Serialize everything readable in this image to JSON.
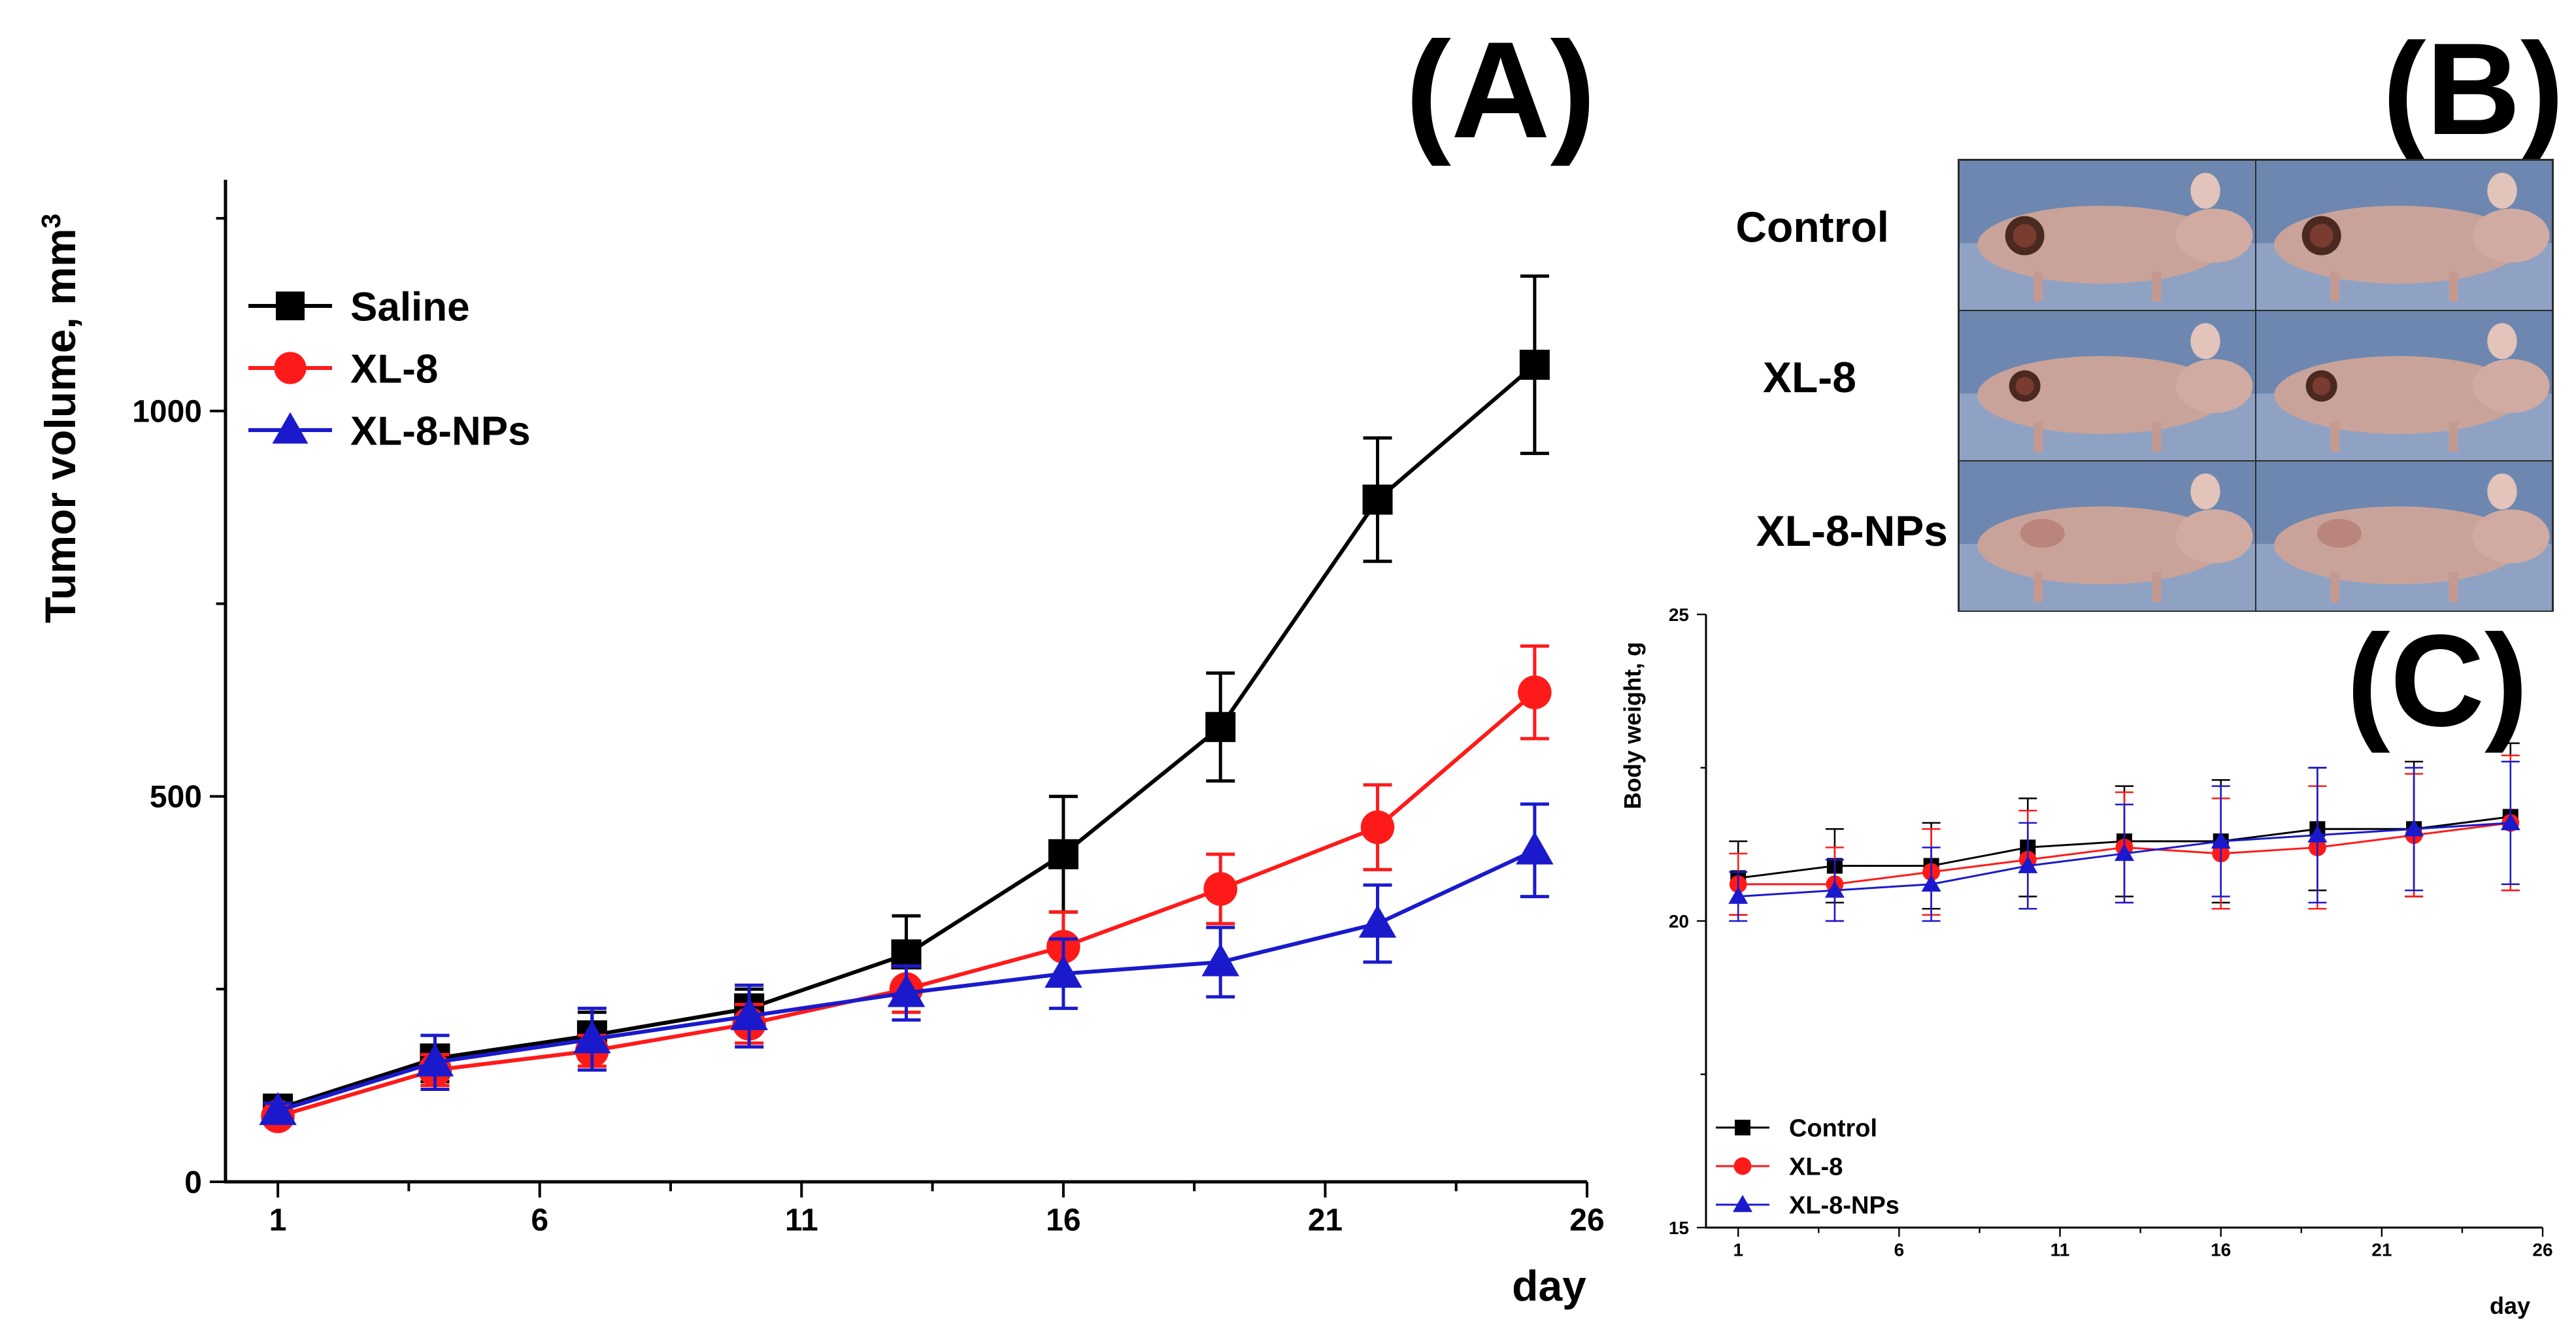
{
  "panels": {
    "a": "(A)",
    "b": "(B)",
    "c": "(C)"
  },
  "colors": {
    "saline": "#000000",
    "xl8": "#ff1a1a",
    "xl8nps": "#1a1acc",
    "photo_bg": "#6d87b0",
    "mouse_skin": "#c9a39a"
  },
  "chart_data": [
    {
      "id": "A",
      "type": "line",
      "title": "(A)",
      "xlabel": "day",
      "ylabel": "Tumor volume, mm",
      "ylabel_sup": "3",
      "xlim": [
        0,
        26
      ],
      "ylim": [
        0,
        1300
      ],
      "xticks": [
        1,
        6,
        11,
        16,
        21,
        26
      ],
      "yticks": [
        0,
        500,
        1000
      ],
      "legend_position": "top-left",
      "series": [
        {
          "name": "Saline",
          "marker": "square",
          "color": "#000000",
          "x": [
            1,
            4,
            7,
            10,
            13,
            16,
            19,
            22,
            25
          ],
          "y": [
            95,
            160,
            190,
            225,
            295,
            425,
            590,
            885,
            1060
          ],
          "err": [
            10,
            30,
            30,
            25,
            50,
            75,
            70,
            80,
            115
          ]
        },
        {
          "name": "XL-8",
          "marker": "circle",
          "color": "#ff1a1a",
          "x": [
            1,
            4,
            7,
            10,
            13,
            16,
            19,
            22,
            25
          ],
          "y": [
            85,
            145,
            170,
            205,
            250,
            305,
            380,
            460,
            635
          ],
          "err": [
            10,
            20,
            20,
            25,
            30,
            45,
            45,
            55,
            60
          ]
        },
        {
          "name": "XL-8-NPs",
          "marker": "triangle",
          "color": "#1a1acc",
          "x": [
            1,
            4,
            7,
            10,
            13,
            16,
            19,
            22,
            25
          ],
          "y": [
            92,
            155,
            185,
            215,
            245,
            270,
            285,
            335,
            430
          ],
          "err": [
            10,
            35,
            40,
            40,
            35,
            45,
            45,
            50,
            60
          ]
        }
      ]
    },
    {
      "id": "C",
      "type": "line",
      "title": "(C)",
      "xlabel": "day",
      "ylabel": "Body weight, g",
      "xlim": [
        0,
        26
      ],
      "ylim": [
        15,
        25
      ],
      "xticks": [
        1,
        6,
        11,
        16,
        21,
        26
      ],
      "yticks": [
        15,
        20,
        25
      ],
      "legend_position": "bottom-left",
      "series": [
        {
          "name": "Control",
          "marker": "square",
          "color": "#000000",
          "x": [
            1,
            4,
            7,
            10,
            13,
            16,
            19,
            22,
            25
          ],
          "y": [
            20.7,
            20.9,
            20.9,
            21.2,
            21.3,
            21.3,
            21.5,
            21.5,
            21.7
          ],
          "err": [
            0.6,
            0.6,
            0.7,
            0.8,
            0.9,
            1.0,
            1.0,
            1.1,
            1.2
          ]
        },
        {
          "name": "XL-8",
          "marker": "circle",
          "color": "#ff1a1a",
          "x": [
            1,
            4,
            7,
            10,
            13,
            16,
            19,
            22,
            25
          ],
          "y": [
            20.6,
            20.6,
            20.8,
            21.0,
            21.2,
            21.1,
            21.2,
            21.4,
            21.6
          ],
          "err": [
            0.5,
            0.6,
            0.7,
            0.8,
            0.9,
            0.9,
            1.0,
            1.0,
            1.1
          ]
        },
        {
          "name": "XL-8-NPs",
          "marker": "triangle",
          "color": "#1a1acc",
          "x": [
            1,
            4,
            7,
            10,
            13,
            16,
            19,
            22,
            25
          ],
          "y": [
            20.4,
            20.5,
            20.6,
            20.9,
            21.1,
            21.3,
            21.4,
            21.5,
            21.6
          ],
          "err": [
            0.4,
            0.5,
            0.6,
            0.7,
            0.8,
            0.9,
            1.1,
            1.0,
            1.0
          ]
        }
      ]
    }
  ],
  "photo_panel": {
    "title": "(B)",
    "rows": [
      "Control",
      "XL-8",
      "XL-8-NPs"
    ]
  }
}
